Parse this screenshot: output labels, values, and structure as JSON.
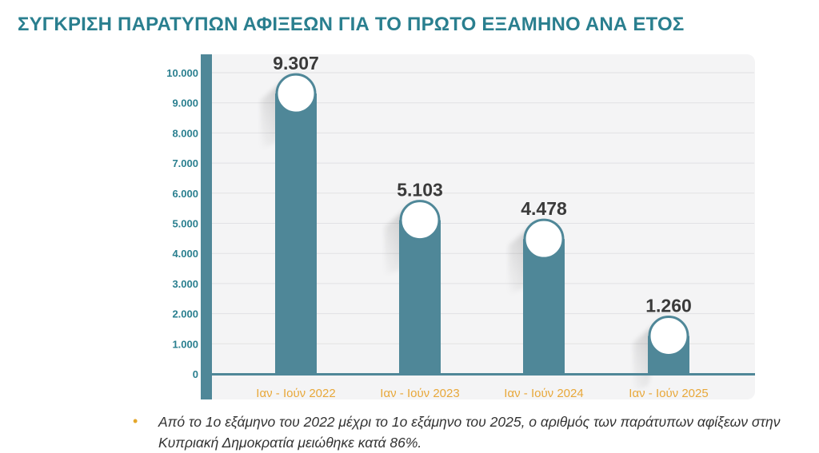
{
  "title": "ΣΥΓΚΡΙΣΗ ΠΑΡΑΤΥΠΩΝ ΑΦΙΞΕΩΝ ΓΙΑ ΤΟ ΠΡΩΤΟ ΕΞΑΜΗΝΟ ΑΝΑ ΕΤΟΣ",
  "note": {
    "bullet": "•",
    "text": "Από το 1ο εξάμηνο του 2022 μέχρι το 1ο εξάμηνο του 2025, ο αριθμός των παράτυπων αφίξεων στην Κυπριακή Δημοκρατία μειώθηκε κατά 86%."
  },
  "chart_data": {
    "type": "bar",
    "title": "",
    "xlabel": "",
    "ylabel": "",
    "categories": [
      "Ιαν - Ιούν 2022",
      "Ιαν - Ιούν 2023",
      "Ιαν - Ιούν 2024",
      "Ιαν - Ιούν 2025"
    ],
    "values": [
      9307,
      5103,
      4478,
      1260
    ],
    "value_labels": [
      "9.307",
      "5.103",
      "4.478",
      "1.260"
    ],
    "ylim": [
      0,
      10000
    ],
    "yticks": [
      0,
      1000,
      2000,
      3000,
      4000,
      5000,
      6000,
      7000,
      8000,
      9000,
      10000
    ],
    "ytick_labels": [
      "0",
      "1.000",
      "2.000",
      "3.000",
      "4.000",
      "5.000",
      "6.000",
      "7.000",
      "8.000",
      "9.000",
      "10.000"
    ],
    "grid": true,
    "legend": "none",
    "colors": {
      "bar": "#4f8798",
      "axis": "#4f8798",
      "tick_label": "#2a7f8f",
      "category_label": "#e8a83a",
      "value_label": "#3a3a3a",
      "panel": "#f4f4f5",
      "grid": "#e1e1e4"
    }
  }
}
